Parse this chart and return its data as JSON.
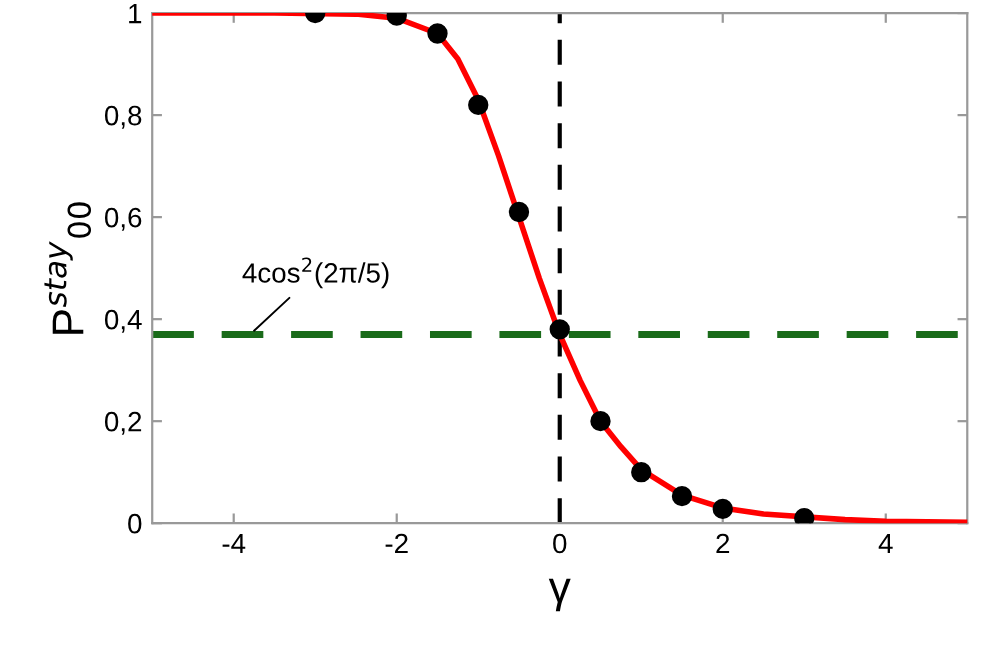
{
  "chart_data": {
    "type": "line",
    "xlabel": "γ",
    "ylabel": "P$^{stay}$$_{00}$",
    "series": [
      {
        "color": "#ff0000",
        "marker": "none",
        "line_style": "solid",
        "x": [
          -5,
          -3.5,
          -2.5,
          -2,
          -1.5,
          -1.25,
          -1,
          -0.75,
          -0.5,
          -0.25,
          0,
          0.25,
          0.5,
          0.75,
          1,
          1.5,
          2,
          2.5,
          3.5,
          4,
          5
        ],
        "values": [
          1,
          1,
          0.998,
          0.99,
          0.96,
          0.91,
          0.83,
          0.72,
          0.6,
          0.48,
          0.37,
          0.28,
          0.2,
          0.15,
          0.105,
          0.055,
          0.03,
          0.018,
          0.007,
          0.004,
          0.002
        ]
      },
      {
        "type": "scatter",
        "color": "#000000",
        "marker": "circle",
        "x": [
          -3,
          -2,
          -1.5,
          -1,
          -0.5,
          0,
          0.5,
          1,
          1.5,
          2,
          3
        ],
        "values": [
          1,
          0.995,
          0.96,
          0.82,
          0.61,
          0.38,
          0.2,
          0.1,
          0.053,
          0.028,
          0.01
        ]
      }
    ],
    "ref_lines": [
      {
        "axis": "y",
        "value": 0.37,
        "label": "4cos$^{2}$(2π/5)",
        "color": "#1a6b1a",
        "line_style": "dashed"
      },
      {
        "axis": "x",
        "value": 0,
        "color": "#000000",
        "line_style": "dashed"
      }
    ],
    "xlim": [
      -5,
      5
    ],
    "ylim": [
      0,
      1
    ],
    "xticks": [
      -4,
      -2,
      0,
      2,
      4
    ],
    "yticks": [
      0,
      {
        "value": 0.2,
        "label": "0,2"
      },
      {
        "value": 0.4,
        "label": "0,4"
      },
      {
        "value": 0.6,
        "label": "0,6"
      },
      {
        "value": 0.8,
        "label": "0,8"
      },
      1
    ],
    "grid": false,
    "legend": false
  }
}
